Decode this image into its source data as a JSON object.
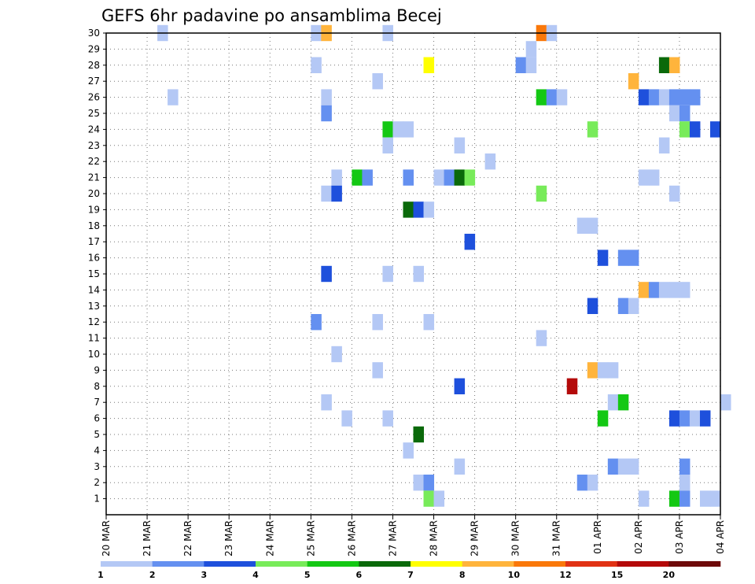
{
  "chart_data": {
    "type": "heatmap",
    "title": "GEFS 6hr padavine po ansamblima Becej",
    "xlabel": "",
    "ylabel": "",
    "x_tick_labels": [
      "20 MAR",
      "21 MAR",
      "22 MAR",
      "23 MAR",
      "24 MAR",
      "25 MAR",
      "26 MAR",
      "27 MAR",
      "28 MAR",
      "29 MAR",
      "30 MAR",
      "31 MAR",
      "01 APR",
      "02 APR",
      "03 APR",
      "04 APR"
    ],
    "y_tick_labels": [
      "1",
      "2",
      "3",
      "4",
      "5",
      "6",
      "7",
      "8",
      "9",
      "10",
      "11",
      "12",
      "13",
      "14",
      "15",
      "16",
      "17",
      "18",
      "19",
      "20",
      "21",
      "22",
      "23",
      "24",
      "25",
      "26",
      "27",
      "28",
      "29",
      "30"
    ],
    "xlim_days": [
      0,
      15
    ],
    "ylim": [
      0,
      30
    ],
    "step_hours": 6,
    "grid": true,
    "colorbar": {
      "labels": [
        "1",
        "2",
        "3",
        "4",
        "5",
        "6",
        "7",
        "8",
        "10",
        "12",
        "15",
        "20"
      ],
      "colors": [
        "#b4c8f5",
        "#6490f0",
        "#1e50dc",
        "#78eb5a",
        "#14c814",
        "#0a690a",
        "#ffff00",
        "#ffb43c",
        "#fa780a",
        "#e13214",
        "#b40a0a",
        "#6e0a0a"
      ]
    },
    "cells": [
      {
        "m": 30,
        "t": "21 MAR 06",
        "c": 0
      },
      {
        "m": 30,
        "t": "25 MAR 00",
        "c": 0
      },
      {
        "m": 30,
        "t": "25 MAR 06",
        "c": 7
      },
      {
        "m": 30,
        "t": "26 MAR 18",
        "c": 0
      },
      {
        "m": 30,
        "t": "30 MAR 12",
        "c": 8
      },
      {
        "m": 30,
        "t": "30 MAR 18",
        "c": 0
      },
      {
        "m": 29,
        "t": "30 MAR 06",
        "c": 0
      },
      {
        "m": 28,
        "t": "25 MAR 00",
        "c": 0
      },
      {
        "m": 28,
        "t": "27 MAR 18",
        "c": 6
      },
      {
        "m": 28,
        "t": "30 MAR 00",
        "c": 1
      },
      {
        "m": 28,
        "t": "30 MAR 06",
        "c": 0
      },
      {
        "m": 28,
        "t": "02 APR 12",
        "c": 5
      },
      {
        "m": 28,
        "t": "02 APR 18",
        "c": 7
      },
      {
        "m": 27,
        "t": "26 MAR 12",
        "c": 0
      },
      {
        "m": 27,
        "t": "01 APR 18",
        "c": 7
      },
      {
        "m": 26,
        "t": "21 MAR 12",
        "c": 0
      },
      {
        "m": 26,
        "t": "25 MAR 06",
        "c": 0
      },
      {
        "m": 26,
        "t": "30 MAR 12",
        "c": 4
      },
      {
        "m": 26,
        "t": "30 MAR 18",
        "c": 1
      },
      {
        "m": 26,
        "t": "31 MAR 00",
        "c": 0
      },
      {
        "m": 26,
        "t": "02 APR 00",
        "c": 2
      },
      {
        "m": 26,
        "t": "02 APR 06",
        "c": 1
      },
      {
        "m": 26,
        "t": "02 APR 12",
        "c": 0
      },
      {
        "m": 26,
        "t": "02 APR 18",
        "c": 1
      },
      {
        "m": 26,
        "t": "03 APR 00",
        "c": 1
      },
      {
        "m": 26,
        "t": "03 APR 06",
        "c": 1
      },
      {
        "m": 25,
        "t": "25 MAR 06",
        "c": 1
      },
      {
        "m": 25,
        "t": "02 APR 18",
        "c": 0
      },
      {
        "m": 25,
        "t": "03 APR 00",
        "c": 1
      },
      {
        "m": 24,
        "t": "26 MAR 18",
        "c": 4
      },
      {
        "m": 24,
        "t": "27 MAR 00",
        "c": 0
      },
      {
        "m": 24,
        "t": "27 MAR 06",
        "c": 0
      },
      {
        "m": 24,
        "t": "31 MAR 18",
        "c": 3
      },
      {
        "m": 24,
        "t": "03 APR 00",
        "c": 3
      },
      {
        "m": 24,
        "t": "03 APR 06",
        "c": 2
      },
      {
        "m": 24,
        "t": "03 APR 18",
        "c": 2
      },
      {
        "m": 23,
        "t": "26 MAR 18",
        "c": 0
      },
      {
        "m": 23,
        "t": "28 MAR 12",
        "c": 0
      },
      {
        "m": 23,
        "t": "02 APR 12",
        "c": 0
      },
      {
        "m": 22,
        "t": "29 MAR 06",
        "c": 0
      },
      {
        "m": 21,
        "t": "25 MAR 12",
        "c": 0
      },
      {
        "m": 21,
        "t": "26 MAR 00",
        "c": 4
      },
      {
        "m": 21,
        "t": "26 MAR 06",
        "c": 1
      },
      {
        "m": 21,
        "t": "27 MAR 06",
        "c": 1
      },
      {
        "m": 21,
        "t": "28 MAR 00",
        "c": 0
      },
      {
        "m": 21,
        "t": "28 MAR 06",
        "c": 1
      },
      {
        "m": 21,
        "t": "28 MAR 12",
        "c": 5
      },
      {
        "m": 21,
        "t": "28 MAR 18",
        "c": 3
      },
      {
        "m": 21,
        "t": "02 APR 00",
        "c": 0
      },
      {
        "m": 21,
        "t": "02 APR 06",
        "c": 0
      },
      {
        "m": 20,
        "t": "25 MAR 06",
        "c": 0
      },
      {
        "m": 20,
        "t": "25 MAR 12",
        "c": 2
      },
      {
        "m": 20,
        "t": "30 MAR 12",
        "c": 3
      },
      {
        "m": 20,
        "t": "02 APR 18",
        "c": 0
      },
      {
        "m": 19,
        "t": "27 MAR 06",
        "c": 5
      },
      {
        "m": 19,
        "t": "27 MAR 12",
        "c": 2
      },
      {
        "m": 19,
        "t": "27 MAR 18",
        "c": 0
      },
      {
        "m": 18,
        "t": "31 MAR 12",
        "c": 0
      },
      {
        "m": 18,
        "t": "31 MAR 18",
        "c": 0
      },
      {
        "m": 17,
        "t": "28 MAR 18",
        "c": 2
      },
      {
        "m": 16,
        "t": "01 APR 00",
        "c": 2
      },
      {
        "m": 16,
        "t": "01 APR 12",
        "c": 1
      },
      {
        "m": 16,
        "t": "01 APR 18",
        "c": 1
      },
      {
        "m": 15,
        "t": "25 MAR 06",
        "c": 2
      },
      {
        "m": 15,
        "t": "26 MAR 18",
        "c": 0
      },
      {
        "m": 15,
        "t": "27 MAR 12",
        "c": 0
      },
      {
        "m": 14,
        "t": "02 APR 00",
        "c": 7
      },
      {
        "m": 14,
        "t": "02 APR 06",
        "c": 1
      },
      {
        "m": 14,
        "t": "02 APR 12",
        "c": 0
      },
      {
        "m": 14,
        "t": "02 APR 18",
        "c": 0
      },
      {
        "m": 14,
        "t": "03 APR 00",
        "c": 0
      },
      {
        "m": 13,
        "t": "31 MAR 18",
        "c": 2
      },
      {
        "m": 13,
        "t": "01 APR 12",
        "c": 1
      },
      {
        "m": 13,
        "t": "01 APR 18",
        "c": 0
      },
      {
        "m": 12,
        "t": "25 MAR 00",
        "c": 1
      },
      {
        "m": 12,
        "t": "26 MAR 12",
        "c": 0
      },
      {
        "m": 12,
        "t": "27 MAR 18",
        "c": 0
      },
      {
        "m": 11,
        "t": "30 MAR 12",
        "c": 0
      },
      {
        "m": 10,
        "t": "25 MAR 12",
        "c": 0
      },
      {
        "m": 9,
        "t": "26 MAR 12",
        "c": 0
      },
      {
        "m": 9,
        "t": "31 MAR 18",
        "c": 7
      },
      {
        "m": 9,
        "t": "01 APR 00",
        "c": 0
      },
      {
        "m": 9,
        "t": "01 APR 06",
        "c": 0
      },
      {
        "m": 8,
        "t": "28 MAR 12",
        "c": 2
      },
      {
        "m": 8,
        "t": "31 MAR 06",
        "c": 10
      },
      {
        "m": 7,
        "t": "25 MAR 06",
        "c": 0
      },
      {
        "m": 7,
        "t": "01 APR 06",
        "c": 0
      },
      {
        "m": 7,
        "t": "01 APR 12",
        "c": 4
      },
      {
        "m": 7,
        "t": "04 APR 00",
        "c": 0
      },
      {
        "m": 6,
        "t": "25 MAR 18",
        "c": 0
      },
      {
        "m": 6,
        "t": "26 MAR 18",
        "c": 0
      },
      {
        "m": 6,
        "t": "01 APR 00",
        "c": 4
      },
      {
        "m": 6,
        "t": "02 APR 18",
        "c": 2
      },
      {
        "m": 6,
        "t": "03 APR 00",
        "c": 1
      },
      {
        "m": 6,
        "t": "03 APR 06",
        "c": 0
      },
      {
        "m": 6,
        "t": "03 APR 12",
        "c": 2
      },
      {
        "m": 5,
        "t": "27 MAR 12",
        "c": 5
      },
      {
        "m": 4,
        "t": "27 MAR 06",
        "c": 0
      },
      {
        "m": 3,
        "t": "28 MAR 12",
        "c": 0
      },
      {
        "m": 3,
        "t": "01 APR 06",
        "c": 1
      },
      {
        "m": 3,
        "t": "01 APR 12",
        "c": 0
      },
      {
        "m": 3,
        "t": "01 APR 18",
        "c": 0
      },
      {
        "m": 3,
        "t": "03 APR 00",
        "c": 1
      },
      {
        "m": 2,
        "t": "27 MAR 12",
        "c": 0
      },
      {
        "m": 2,
        "t": "27 MAR 18",
        "c": 1
      },
      {
        "m": 2,
        "t": "31 MAR 12",
        "c": 1
      },
      {
        "m": 2,
        "t": "31 MAR 18",
        "c": 0
      },
      {
        "m": 2,
        "t": "03 APR 00",
        "c": 0
      },
      {
        "m": 1,
        "t": "27 MAR 18",
        "c": 3
      },
      {
        "m": 1,
        "t": "28 MAR 00",
        "c": 0
      },
      {
        "m": 1,
        "t": "02 APR 00",
        "c": 0
      },
      {
        "m": 1,
        "t": "02 APR 18",
        "c": 4
      },
      {
        "m": 1,
        "t": "03 APR 00",
        "c": 1
      },
      {
        "m": 1,
        "t": "03 APR 12",
        "c": 0
      },
      {
        "m": 1,
        "t": "03 APR 18",
        "c": 0
      }
    ]
  }
}
